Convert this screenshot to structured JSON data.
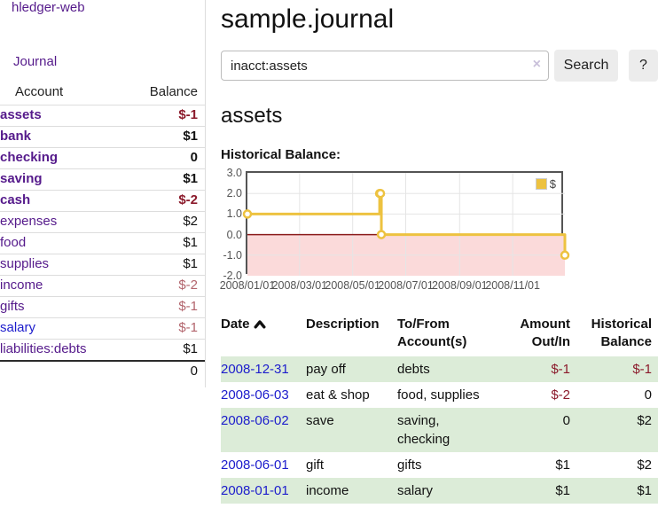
{
  "app": {
    "title": "hledger-web"
  },
  "colors": {
    "link_purple": "#551a8b",
    "link_blue": "#1c1ccc",
    "negative_strong": "#8b1a2b",
    "negative_soft": "#b2646c",
    "row_green": "#dcecd8",
    "button_bg": "#ececec",
    "divider": "#dddddd"
  },
  "sidebar": {
    "journal_link": "Journal",
    "accounts": {
      "header_account": "Account",
      "header_balance": "Balance",
      "rows": [
        {
          "name": "assets",
          "balance": "$-1",
          "depth": 1,
          "bold": true,
          "negative": "strong"
        },
        {
          "name": "bank",
          "balance": "$1",
          "depth": 2,
          "bold": true
        },
        {
          "name": "checking",
          "balance": "0",
          "depth": 3,
          "bold": true
        },
        {
          "name": "saving",
          "balance": "$1",
          "depth": 3,
          "bold": true
        },
        {
          "name": "cash",
          "balance": "$-2",
          "depth": 2,
          "bold": true,
          "negative": "strong"
        },
        {
          "name": "expenses",
          "balance": "$2",
          "depth": 1
        },
        {
          "name": "food",
          "balance": "$1",
          "depth": 2
        },
        {
          "name": "supplies",
          "balance": "$1",
          "depth": 2
        },
        {
          "name": "income",
          "balance": "$-2",
          "depth": 1,
          "negative": "soft"
        },
        {
          "name": "gifts",
          "balance": "$-1",
          "depth": 2,
          "negative": "soft"
        },
        {
          "name": "salary",
          "balance": "$-1",
          "depth": 2,
          "negative": "soft",
          "link_style": "blue"
        },
        {
          "name": "liabilities:debts",
          "balance": "$1",
          "depth": 1
        }
      ],
      "total": "0"
    }
  },
  "main": {
    "title": "sample.journal",
    "search": {
      "value": "inacct:assets",
      "clear_icon": "×",
      "button_label": "Search",
      "help_label": "?"
    },
    "account_heading": "assets",
    "chart_label": "Historical Balance:"
  },
  "chart_data": {
    "type": "line",
    "title": "Historical Balance:",
    "step": "step-after",
    "grid": true,
    "legend_position": "top-right",
    "legend": [
      {
        "label": "$",
        "color": "#edc240"
      }
    ],
    "x_domain_days": [
      0,
      365
    ],
    "ylim": [
      -2.0,
      3.0
    ],
    "points": [
      {
        "date": "2008-01-01",
        "day": 0,
        "value": 1.0
      },
      {
        "date": "2008-06-01",
        "day": 152,
        "value": 2.0
      },
      {
        "date": "2008-06-02",
        "day": 153,
        "value": 2.0
      },
      {
        "date": "2008-06-03",
        "day": 154,
        "value": 0.0
      },
      {
        "date": "2008-12-31",
        "day": 365,
        "value": -1.0
      }
    ],
    "y_ticks": [
      {
        "value": 3,
        "label": "3.0"
      },
      {
        "value": 2,
        "label": "2.0"
      },
      {
        "value": 1,
        "label": "1.0"
      },
      {
        "value": 0,
        "label": "0.0"
      },
      {
        "value": -1,
        "label": "-1.0"
      },
      {
        "value": -2,
        "label": "-2.0"
      }
    ],
    "x_ticks": [
      {
        "day": 0,
        "label": "2008/01/01"
      },
      {
        "day": 60,
        "label": "2008/03/01"
      },
      {
        "day": 121,
        "label": "2008/05/01"
      },
      {
        "day": 182,
        "label": "2008/07/01"
      },
      {
        "day": 244,
        "label": "2008/09/01"
      },
      {
        "day": 305,
        "label": "2008/11/01"
      }
    ],
    "colors": {
      "series": "#edc240",
      "marker_fill": "#ffffff",
      "below_zero_fill": "#fbdada",
      "zero_line": "#8b1c1c",
      "gridline": "#e5e5e5",
      "plot_border": "#545454",
      "tick_label": "#545454"
    }
  },
  "transactions": {
    "sort": {
      "column": "Date",
      "direction": "asc",
      "icon": "chevron-up-icon"
    },
    "headers": {
      "date": "Date",
      "description": "Description",
      "accounts": "To/From Account(s)",
      "amount": "Amount Out/In",
      "balance": "Historical Balance"
    },
    "rows": [
      {
        "date": "2008-12-31",
        "description": "pay off",
        "accounts": "debts",
        "amount": "$-1",
        "balance": "$-1"
      },
      {
        "date": "2008-06-03",
        "description": "eat & shop",
        "accounts": "food, supplies",
        "amount": "$-2",
        "balance": "0"
      },
      {
        "date": "2008-06-02",
        "description": "save",
        "accounts": "saving, checking",
        "amount": "0",
        "balance": "$2"
      },
      {
        "date": "2008-06-01",
        "description": "gift",
        "accounts": "gifts",
        "amount": "$1",
        "balance": "$2"
      },
      {
        "date": "2008-01-01",
        "description": "income",
        "accounts": "salary",
        "amount": "$1",
        "balance": "$1"
      }
    ]
  }
}
